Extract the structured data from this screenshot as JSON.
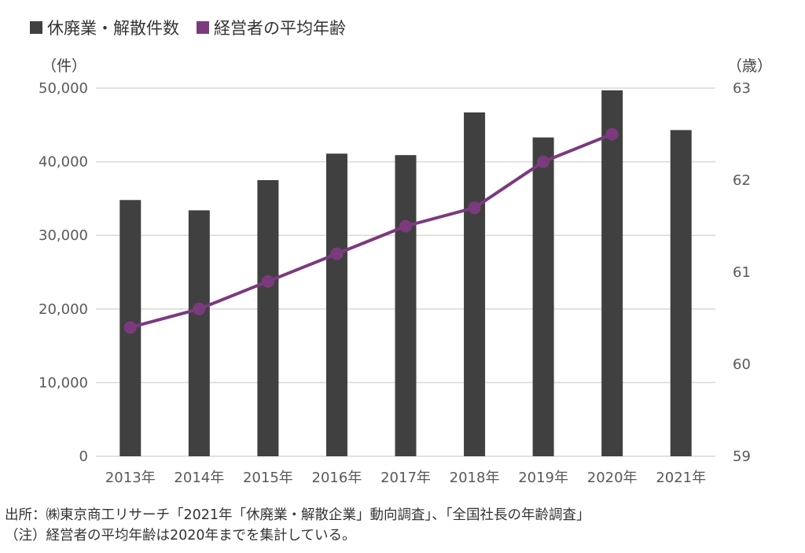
{
  "legend": {
    "bar_label": "休廃業・解散件数",
    "line_label": "経営者の平均年齢"
  },
  "colors": {
    "bar": "#404040",
    "line": "#7b3a7e",
    "grid": "#d9d9d9"
  },
  "chart_data": {
    "type": "bar+line",
    "categories": [
      "2013年",
      "2014年",
      "2015年",
      "2016年",
      "2017年",
      "2018年",
      "2019年",
      "2020年",
      "2021年"
    ],
    "series": [
      {
        "name": "休廃業・解散件数",
        "type": "bar",
        "axis": "left",
        "values": [
          34800,
          33400,
          37500,
          41100,
          40900,
          46700,
          43300,
          49700,
          44300
        ]
      },
      {
        "name": "経営者の平均年齢",
        "type": "line",
        "axis": "right",
        "values": [
          60.4,
          60.6,
          60.9,
          61.2,
          61.5,
          61.7,
          62.2,
          62.5,
          null
        ]
      }
    ],
    "y_left": {
      "unit": "（件）",
      "ylim": [
        0,
        50000
      ],
      "ticks": [
        "0",
        "10,000",
        "20,000",
        "30,000",
        "40,000",
        "50,000"
      ],
      "tick_values": [
        0,
        10000,
        20000,
        30000,
        40000,
        50000
      ]
    },
    "y_right": {
      "unit": "（歳）",
      "ylim": [
        59,
        63
      ],
      "ticks": [
        "59",
        "60",
        "61",
        "62",
        "63"
      ],
      "tick_values": [
        59,
        60,
        61,
        62,
        63
      ]
    },
    "grid": true,
    "legend_position": "top-left"
  },
  "source": {
    "line1": "出所：㈱東京商工リサーチ「2021年「休廃業・解散企業」動向調査」、「全国社長の年齢調査」",
    "line2": "（注）経営者の平均年齢は2020年までを集計している。"
  }
}
